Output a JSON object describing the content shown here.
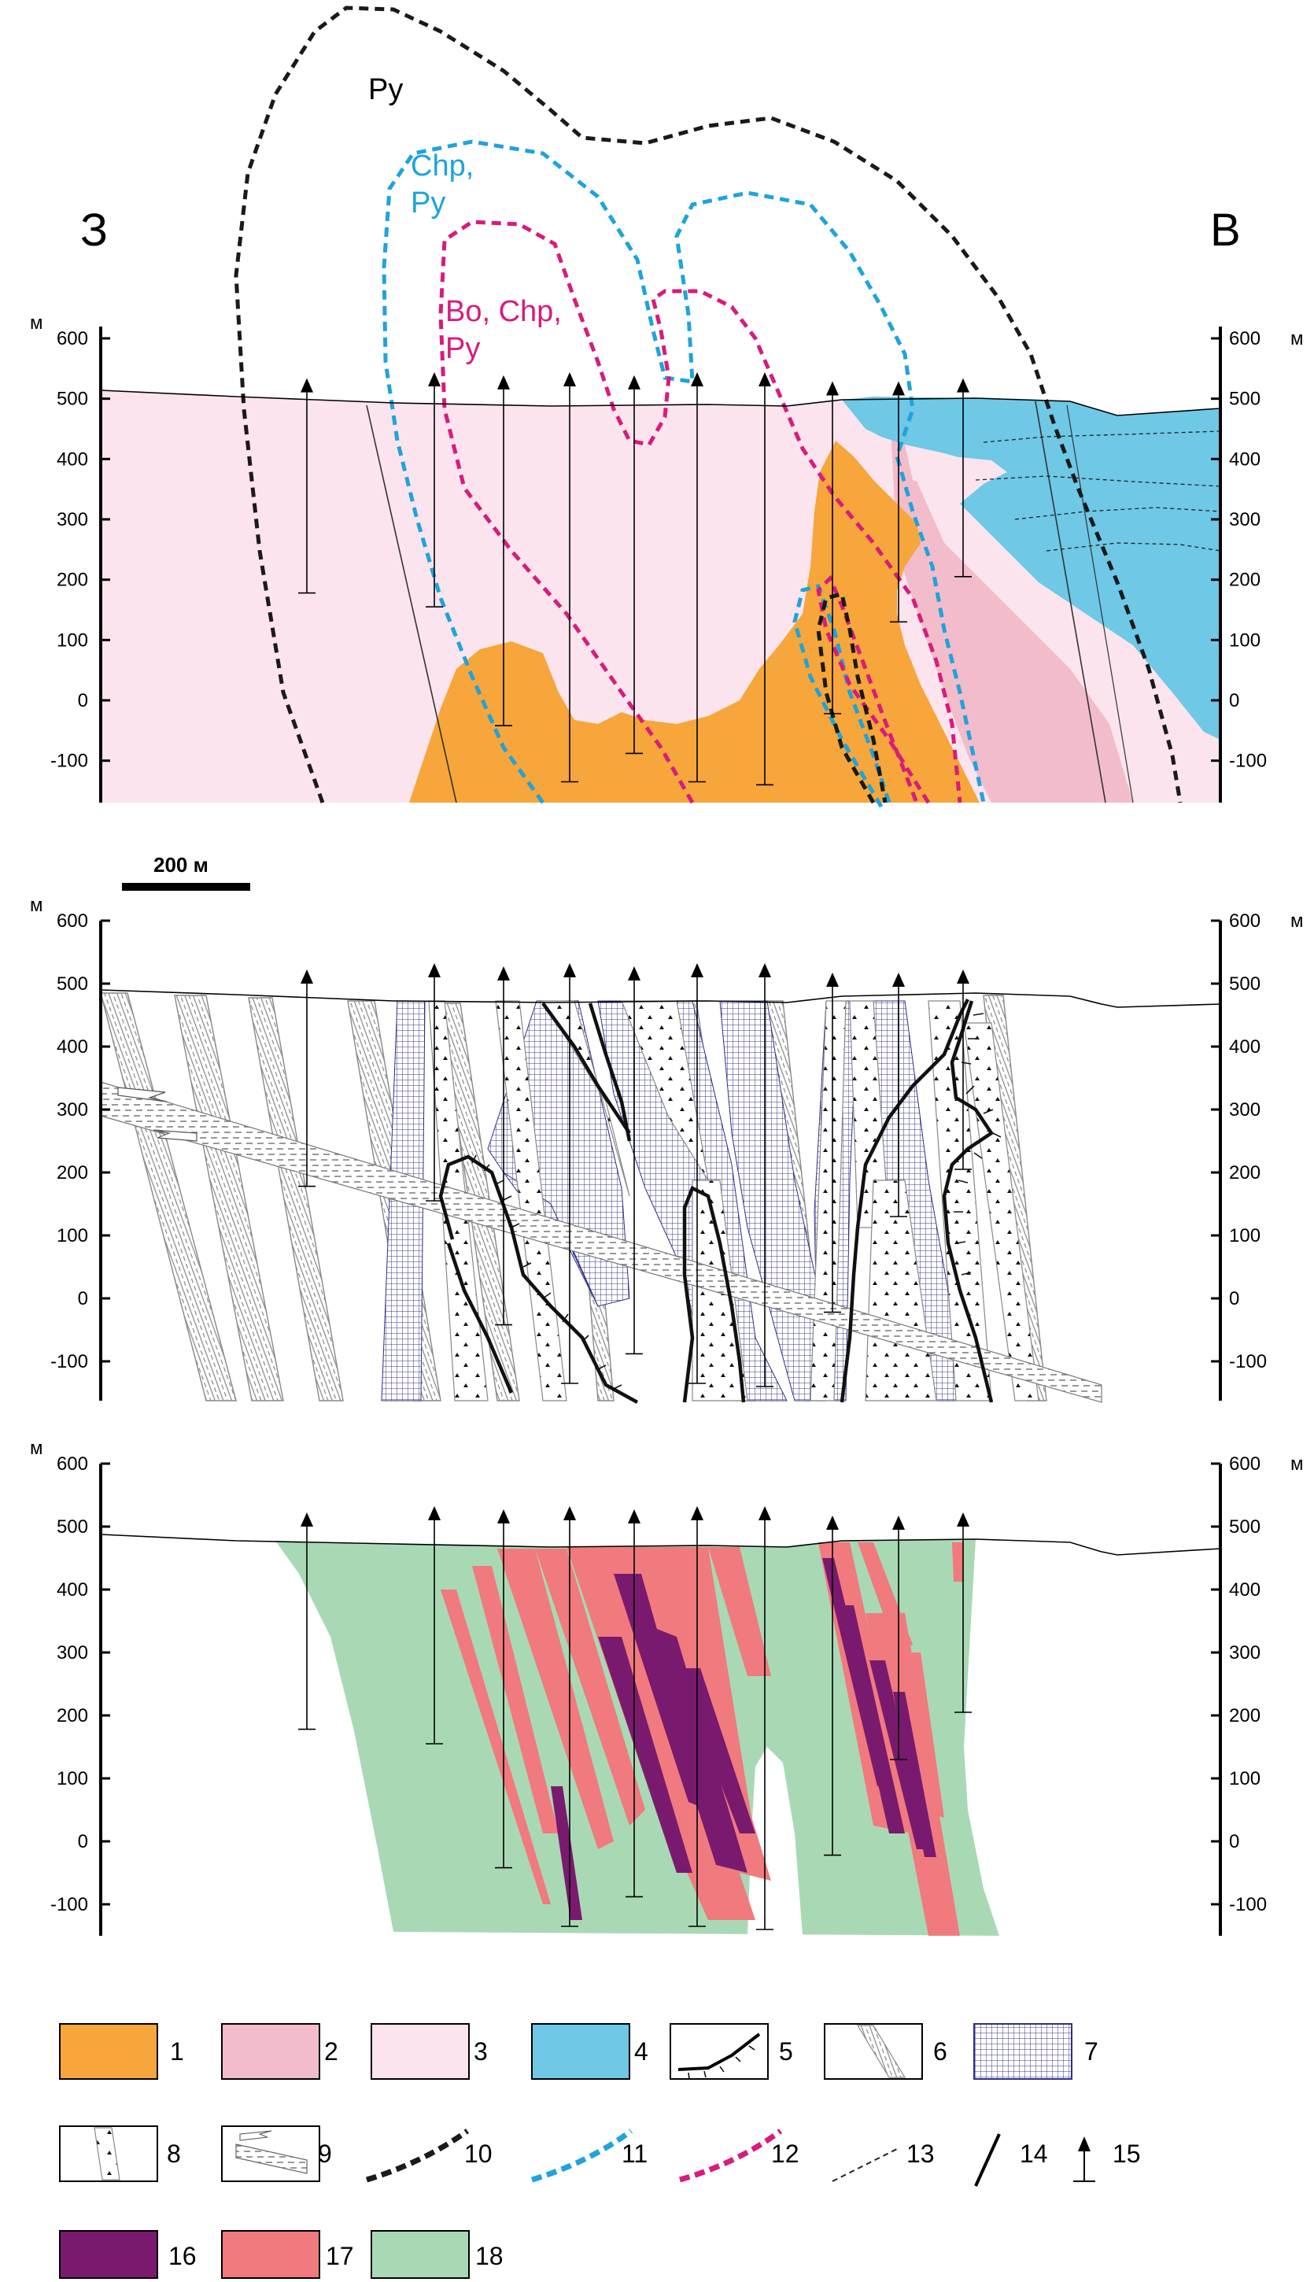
{
  "side_labels": {
    "left": "З",
    "right": "В"
  },
  "axis_unit": "м",
  "y_ticks": [
    600,
    500,
    400,
    300,
    200,
    100,
    0,
    -100
  ],
  "scale_bar": "200 м",
  "zone_labels": {
    "py": "Py",
    "chp_py": [
      "Chp,",
      "Py"
    ],
    "bo_chp_py": [
      "Bo, Chp,",
      "Py"
    ]
  },
  "legend": [
    "1",
    "2",
    "3",
    "4",
    "5",
    "6",
    "7",
    "8",
    "9",
    "10",
    "11",
    "12",
    "13",
    "14",
    "15",
    "16",
    "17",
    "18"
  ],
  "colors": {
    "unit1_orange": "#f6a63a",
    "unit2_pink": "#f2bccb",
    "unit3_lightpink": "#fbe4ee",
    "unit4_blue": "#6ec8e6",
    "unit7_grid": "#2f2f8a",
    "contour_py": "#1a1a1a",
    "contour_chp": "#1fa3dc",
    "contour_bo": "#d81b7c",
    "unit16_purple": "#7a1a6e",
    "unit17_salmon": "#f07a7e",
    "unit18_green": "#a9d9b4"
  }
}
